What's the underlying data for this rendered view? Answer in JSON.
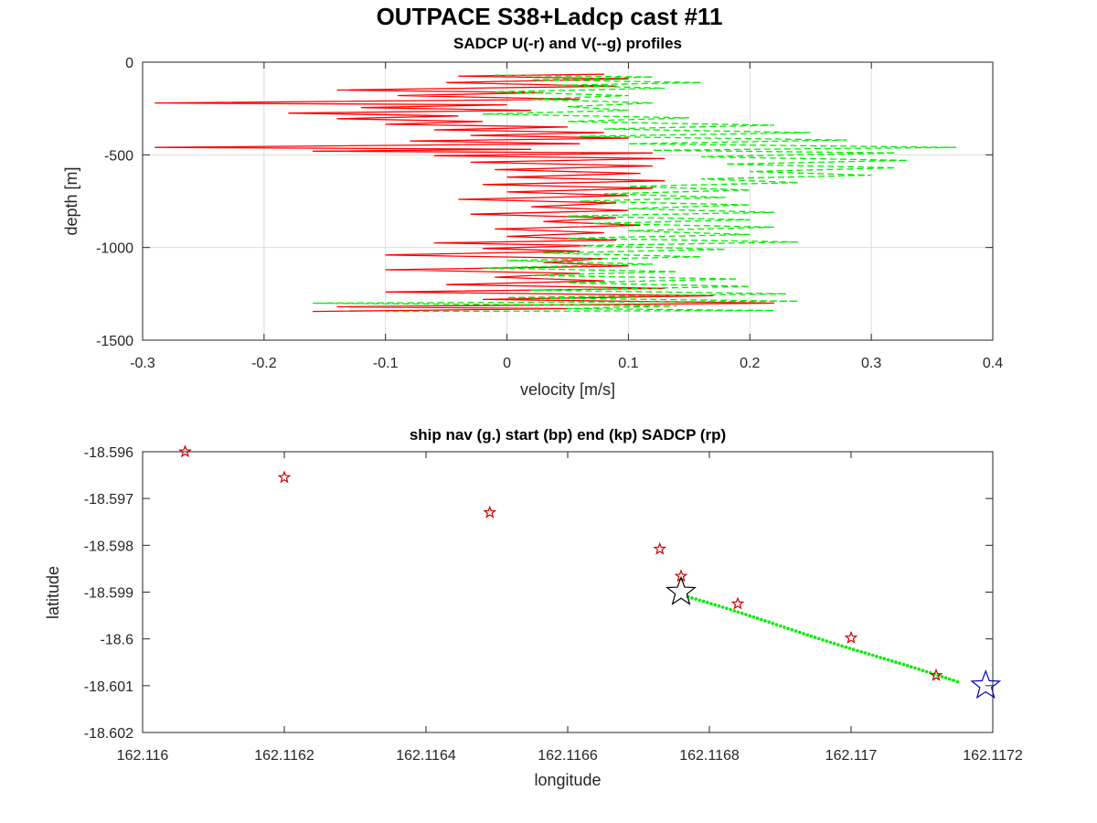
{
  "figure": {
    "title": "OUTPACE S38+Ladcp cast #11"
  },
  "chart_data": [
    {
      "type": "line",
      "title": "SADCP U(-r) and V(--g) profiles",
      "xlabel": "velocity [m/s]",
      "ylabel": "depth [m]",
      "xlim": [
        -0.3,
        0.4
      ],
      "ylim": [
        -1500,
        0
      ],
      "xticks": [
        "-0.3",
        "-0.2",
        "-0.1",
        "0",
        "0.1",
        "0.2",
        "0.3",
        "0.4"
      ],
      "yticks": [
        "0",
        "-500",
        "-1000",
        "-1500"
      ],
      "grid": true,
      "series": [
        {
          "color": "#ff0000",
          "style": "solid",
          "points": [
            [
              0.08,
              -65
            ],
            [
              -0.04,
              -75
            ],
            [
              0.1,
              -90
            ],
            [
              -0.05,
              -110
            ],
            [
              0.09,
              -130
            ],
            [
              -0.14,
              -150
            ],
            [
              0.03,
              -165
            ],
            [
              -0.09,
              -180
            ],
            [
              0.06,
              -200
            ],
            [
              -0.29,
              -220
            ],
            [
              0.0,
              -230
            ],
            [
              -0.12,
              -245
            ],
            [
              0.02,
              -260
            ],
            [
              -0.18,
              -275
            ],
            [
              -0.04,
              -290
            ],
            [
              -0.14,
              -305
            ],
            [
              -0.02,
              -320
            ],
            [
              -0.1,
              -335
            ],
            [
              0.05,
              -350
            ],
            [
              -0.06,
              -365
            ],
            [
              0.08,
              -380
            ],
            [
              -0.03,
              -395
            ],
            [
              0.1,
              -410
            ],
            [
              -0.08,
              -425
            ],
            [
              0.06,
              -440
            ],
            [
              -0.29,
              -460
            ],
            [
              0.02,
              -470
            ],
            [
              -0.16,
              -480
            ],
            [
              0.12,
              -490
            ],
            [
              -0.06,
              -505
            ],
            [
              0.13,
              -520
            ],
            [
              -0.03,
              -540
            ],
            [
              0.12,
              -560
            ],
            [
              -0.01,
              -580
            ],
            [
              0.11,
              -600
            ],
            [
              0.0,
              -620
            ],
            [
              0.13,
              -640
            ],
            [
              -0.02,
              -660
            ],
            [
              0.12,
              -680
            ],
            [
              0.0,
              -700
            ],
            [
              0.1,
              -720
            ],
            [
              -0.04,
              -740
            ],
            [
              0.09,
              -760
            ],
            [
              0.02,
              -780
            ],
            [
              0.1,
              -800
            ],
            [
              -0.03,
              -820
            ],
            [
              0.09,
              -840
            ],
            [
              0.03,
              -860
            ],
            [
              0.11,
              -880
            ],
            [
              -0.01,
              -900
            ],
            [
              0.08,
              -920
            ],
            [
              0.0,
              -940
            ],
            [
              0.09,
              -960
            ],
            [
              -0.06,
              -975
            ],
            [
              0.07,
              -990
            ],
            [
              -0.02,
              -1005
            ],
            [
              0.06,
              -1020
            ],
            [
              -0.1,
              -1040
            ],
            [
              0.08,
              -1060
            ],
            [
              0.03,
              -1080
            ],
            [
              0.1,
              -1100
            ],
            [
              -0.1,
              -1120
            ],
            [
              0.06,
              -1140
            ],
            [
              -0.01,
              -1160
            ],
            [
              0.08,
              -1180
            ],
            [
              -0.05,
              -1200
            ],
            [
              0.13,
              -1220
            ],
            [
              -0.1,
              -1240
            ],
            [
              0.17,
              -1260
            ],
            [
              -0.02,
              -1280
            ],
            [
              0.22,
              -1300
            ],
            [
              -0.14,
              -1320
            ],
            [
              0.05,
              -1330
            ],
            [
              -0.16,
              -1345
            ]
          ]
        },
        {
          "color": "#00ee00",
          "style": "dashed",
          "points": [
            [
              -0.01,
              -70
            ],
            [
              0.12,
              -80
            ],
            [
              0.02,
              -95
            ],
            [
              0.16,
              -110
            ],
            [
              0.04,
              -125
            ],
            [
              0.13,
              -140
            ],
            [
              -0.01,
              -160
            ],
            [
              0.1,
              -180
            ],
            [
              0.02,
              -200
            ],
            [
              0.12,
              -220
            ],
            [
              0.05,
              -240
            ],
            [
              0.1,
              -260
            ],
            [
              -0.02,
              -280
            ],
            [
              0.15,
              -300
            ],
            [
              0.05,
              -320
            ],
            [
              0.22,
              -340
            ],
            [
              0.08,
              -360
            ],
            [
              0.25,
              -380
            ],
            [
              0.06,
              -400
            ],
            [
              0.28,
              -420
            ],
            [
              0.1,
              -440
            ],
            [
              0.37,
              -460
            ],
            [
              0.12,
              -475
            ],
            [
              0.32,
              -490
            ],
            [
              0.16,
              -510
            ],
            [
              0.33,
              -530
            ],
            [
              0.18,
              -550
            ],
            [
              0.32,
              -570
            ],
            [
              0.2,
              -590
            ],
            [
              0.3,
              -610
            ],
            [
              0.16,
              -630
            ],
            [
              0.24,
              -650
            ],
            [
              0.1,
              -670
            ],
            [
              0.2,
              -690
            ],
            [
              0.08,
              -710
            ],
            [
              0.18,
              -730
            ],
            [
              0.06,
              -750
            ],
            [
              0.2,
              -770
            ],
            [
              0.1,
              -790
            ],
            [
              0.22,
              -810
            ],
            [
              0.05,
              -830
            ],
            [
              0.2,
              -850
            ],
            [
              0.07,
              -870
            ],
            [
              0.22,
              -890
            ],
            [
              0.1,
              -910
            ],
            [
              0.2,
              -930
            ],
            [
              0.05,
              -950
            ],
            [
              0.24,
              -970
            ],
            [
              0.06,
              -990
            ],
            [
              0.18,
              -1010
            ],
            [
              0.03,
              -1030
            ],
            [
              0.16,
              -1050
            ],
            [
              0.0,
              -1070
            ],
            [
              0.12,
              -1090
            ],
            [
              -0.02,
              -1110
            ],
            [
              0.14,
              -1130
            ],
            [
              0.02,
              -1150
            ],
            [
              0.19,
              -1170
            ],
            [
              0.05,
              -1190
            ],
            [
              0.2,
              -1210
            ],
            [
              0.02,
              -1230
            ],
            [
              0.23,
              -1250
            ],
            [
              0.0,
              -1270
            ],
            [
              0.24,
              -1290
            ],
            [
              -0.16,
              -1300
            ],
            [
              0.14,
              -1315
            ],
            [
              0.05,
              -1330
            ],
            [
              0.22,
              -1340
            ],
            [
              -0.1,
              -1345
            ]
          ]
        }
      ]
    },
    {
      "type": "scatter",
      "title": "ship nav (g.) start (bp) end (kp) SADCP (rp)",
      "xlabel": "longitude",
      "ylabel": "latitude",
      "xlim": [
        162.116,
        162.1172
      ],
      "ylim": [
        -18.602,
        -18.596
      ],
      "xticks": [
        "162.116",
        "162.1162",
        "162.1164",
        "162.1166",
        "162.1168",
        "162.117",
        "162.1172"
      ],
      "yticks": [
        "-18.596",
        "-18.597",
        "-18.598",
        "-18.599",
        "-18.6",
        "-18.601",
        "-18.602"
      ],
      "grid": false,
      "ship_nav_color": "#00ee00",
      "sadcp_color": "#cc0000",
      "start_color": "#0000cc",
      "end_color": "#000000",
      "ship_nav_start": [
        162.11677,
        -18.5991
      ],
      "ship_nav_end": [
        162.11715,
        -18.60092
      ],
      "sadcp_points": [
        [
          162.11606,
          -18.596
        ],
        [
          162.1162,
          -18.59655
        ],
        [
          162.11649,
          -18.5973
        ],
        [
          162.11673,
          -18.59808
        ],
        [
          162.11676,
          -18.59866
        ],
        [
          162.11684,
          -18.59925
        ],
        [
          162.117,
          -18.59998
        ],
        [
          162.11712,
          -18.60078
        ]
      ],
      "start_point": [
        162.11719,
        -18.601
      ],
      "end_point": [
        162.11676,
        -18.599
      ]
    }
  ]
}
